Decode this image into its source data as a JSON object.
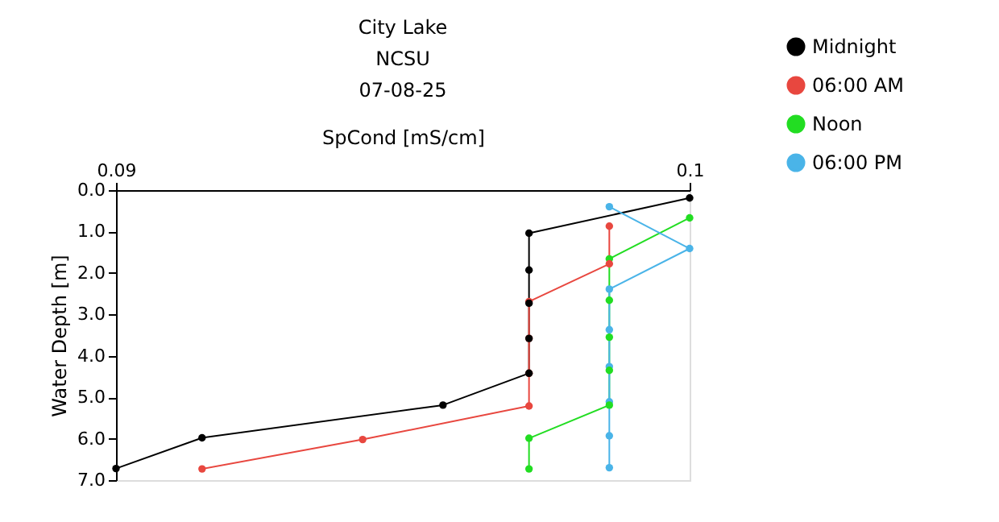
{
  "chart_data": {
    "type": "line",
    "title": "City Lake",
    "subtitle": "NCSU",
    "annotations": [
      "07-08-25"
    ],
    "xlabel": "SpCond [mS/cm]",
    "ylabel": "Water Depth [m]",
    "xlim": [
      0.09,
      0.1
    ],
    "xticks": [
      0.09,
      0.1
    ],
    "ylim": [
      7,
      0
    ],
    "yticks": [
      {
        "value": 0,
        "label": "0.0"
      },
      {
        "value": 1,
        "label": "1.0"
      },
      {
        "value": 2,
        "label": "2.0"
      },
      {
        "value": 3,
        "label": "3.0"
      },
      {
        "value": 4,
        "label": "4.0"
      },
      {
        "value": 5,
        "label": "5.0"
      },
      {
        "value": 6,
        "label": "6.0"
      },
      {
        "value": 7,
        "label": "7.0"
      }
    ],
    "grid": false,
    "legend": "top right",
    "marker": "circle",
    "line_style": "solid",
    "series": [
      {
        "name": "Midnight",
        "color": "#000000",
        "x": [
          0.1,
          0.0972,
          0.0972,
          0.0972,
          0.0972,
          0.0972,
          0.0957,
          0.0915,
          0.09
        ],
        "values": [
          0.19,
          1.04,
          1.93,
          2.73,
          3.58,
          4.42,
          5.19,
          5.98,
          6.72
        ]
      },
      {
        "name": "06:00 AM",
        "color": "#e8473f",
        "x": [
          0.0986,
          0.0986,
          0.0972,
          0.0972,
          0.0972,
          0.0972,
          0.0943,
          0.0915
        ],
        "values": [
          0.87,
          1.78,
          2.69,
          3.58,
          4.42,
          5.21,
          6.02,
          6.73
        ]
      },
      {
        "name": "Noon",
        "color": "#22dd22",
        "x": [
          0.1,
          0.0986,
          0.0986,
          0.0986,
          0.0986,
          0.0986,
          0.0972,
          0.0972
        ],
        "values": [
          0.67,
          1.66,
          2.66,
          3.55,
          4.35,
          5.19,
          5.99,
          6.73
        ]
      },
      {
        "name": "06:00 PM",
        "color": "#4ab4e8",
        "x": [
          0.0986,
          0.1,
          0.0986,
          0.0986,
          0.0986,
          0.0986,
          0.0986,
          0.0986
        ],
        "values": [
          0.4,
          1.41,
          2.39,
          3.37,
          4.26,
          5.11,
          5.93,
          6.7
        ]
      }
    ]
  }
}
